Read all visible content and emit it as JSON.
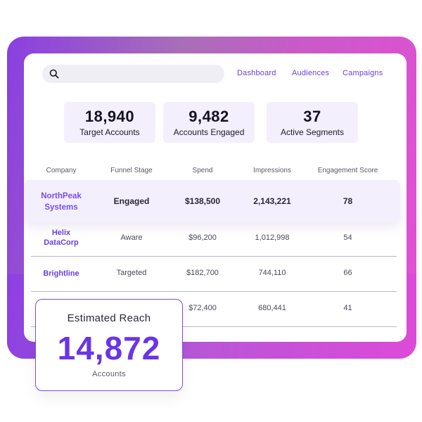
{
  "nav": {
    "dashboard": "Dashboard",
    "audiences": "Audiences",
    "campaigns": "Campaigns"
  },
  "search": {
    "placeholder": ""
  },
  "stats": [
    {
      "value": "18,940",
      "label": "Target Accounts"
    },
    {
      "value": "9,482",
      "label": "Accounts Engaged"
    },
    {
      "value": "37",
      "label": "Active Segments"
    }
  ],
  "table": {
    "headers": [
      "Company",
      "Funnel Stage",
      "Spend",
      "Impressions",
      "Engagement Score"
    ],
    "rows": [
      {
        "company": [
          "NorthPeak",
          "Systems"
        ],
        "stage": "Engaged",
        "spend": "$138,500",
        "impressions": "2,143,221",
        "score": "78"
      },
      {
        "company": [
          "Helix",
          "DataCorp"
        ],
        "stage": "Aware",
        "spend": "$96,200",
        "impressions": "1,012,998",
        "score": "54"
      },
      {
        "company": [
          "Brightline"
        ],
        "stage": "Targeted",
        "spend": "$182,700",
        "impressions": "744,110",
        "score": "66"
      },
      {
        "company": [
          ""
        ],
        "stage": "",
        "spend": "$72,400",
        "impressions": "680,441",
        "score": "41"
      }
    ]
  },
  "reach": {
    "title": "Estimated Reach",
    "value": "14,872",
    "unit": "Accounts"
  },
  "colors": {
    "accent": "#6a35e4",
    "highlight_row": "#f3effc",
    "frame_gradient_start": "#8a3fe0",
    "frame_gradient_end": "#e24fd4"
  },
  "icons": {
    "search": "search-icon"
  }
}
